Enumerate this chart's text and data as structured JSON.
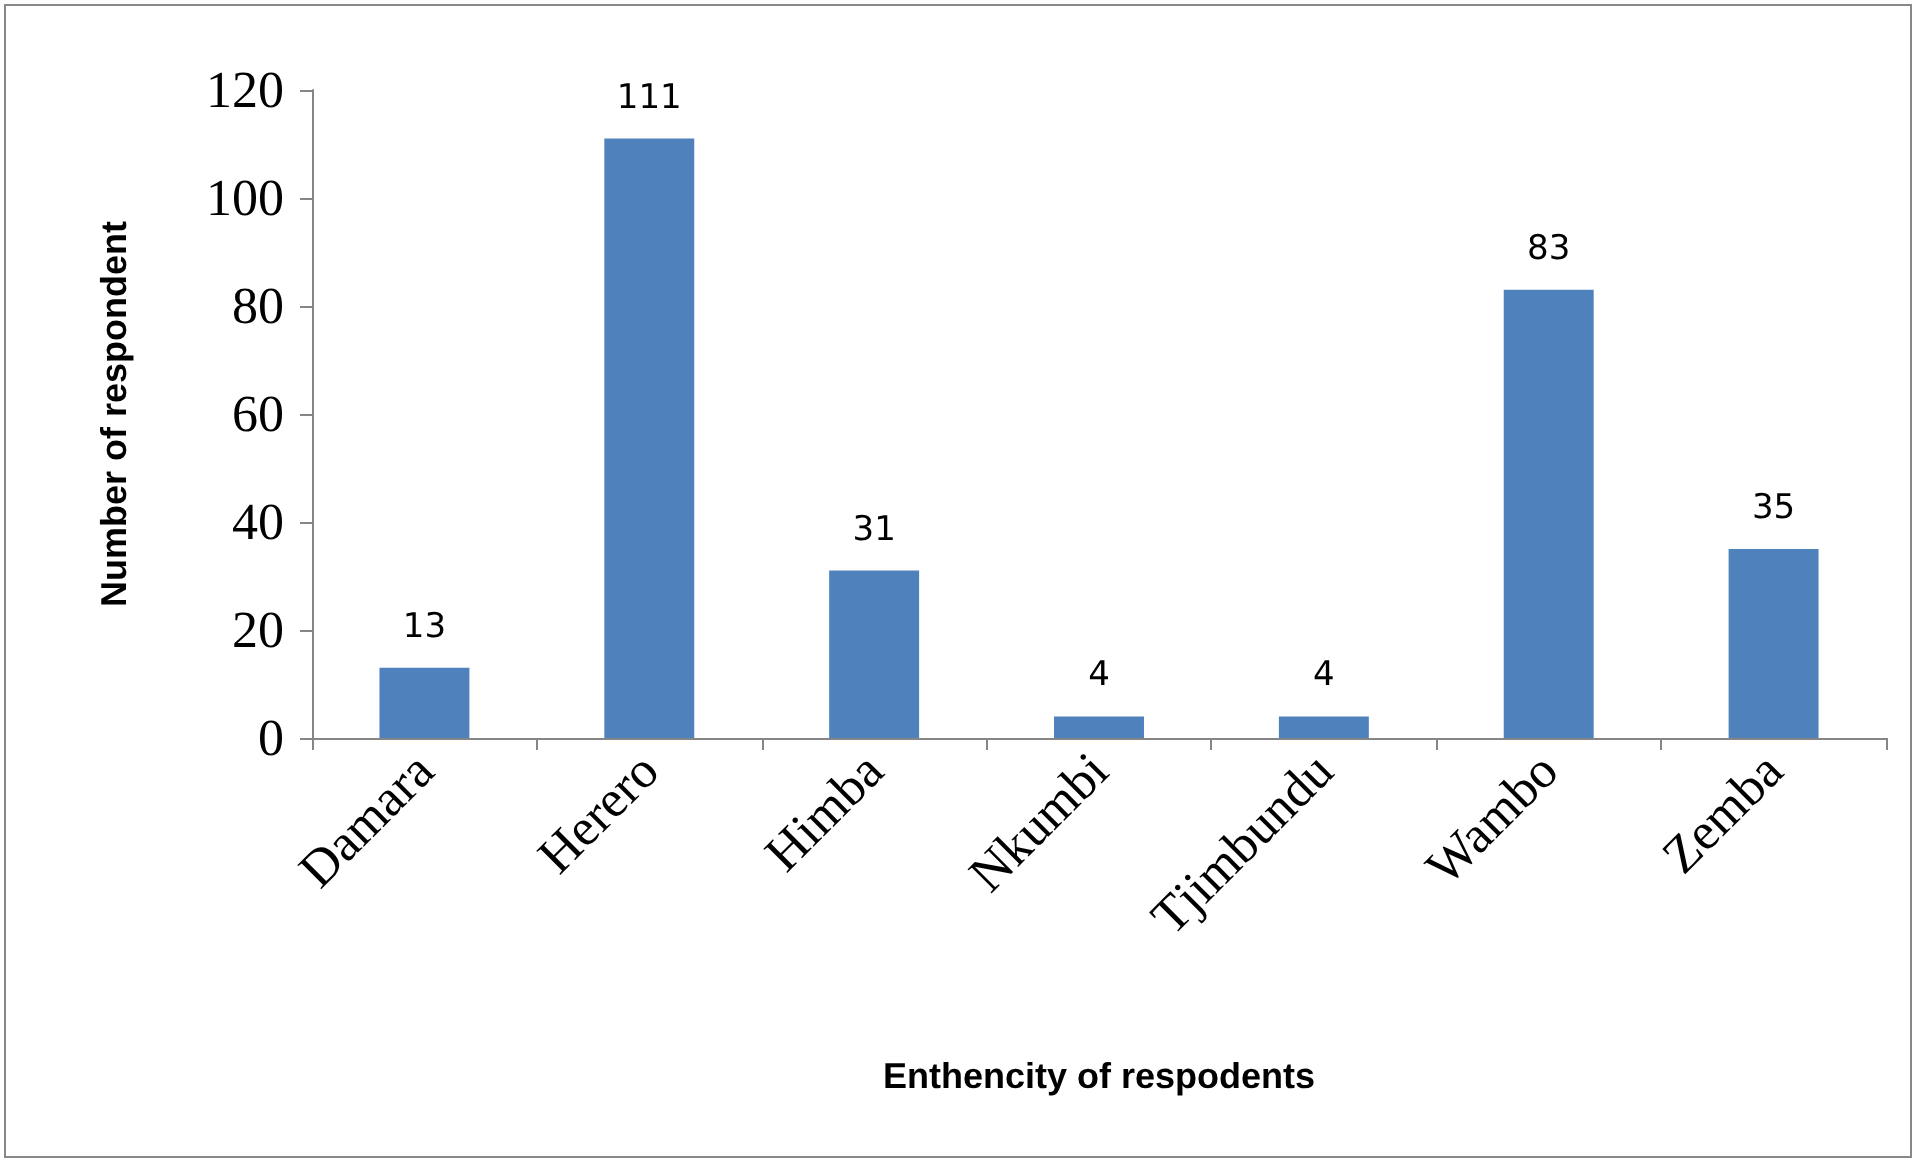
{
  "chart_data": {
    "type": "bar",
    "xlabel": "Enthencity of respodents",
    "ylabel": "Number of respondent",
    "categories": [
      "Damara",
      "Herero",
      "Himba",
      "Nkumbi",
      "Tjimbundu",
      "Wambo",
      "Zemba"
    ],
    "values": [
      13,
      111,
      31,
      4,
      4,
      83,
      35
    ],
    "color": "#4f81bd",
    "ylim": [
      0,
      120
    ],
    "yticks": [
      0,
      20,
      40,
      60,
      80,
      100,
      120
    ],
    "grid": false,
    "data_labels": true
  }
}
